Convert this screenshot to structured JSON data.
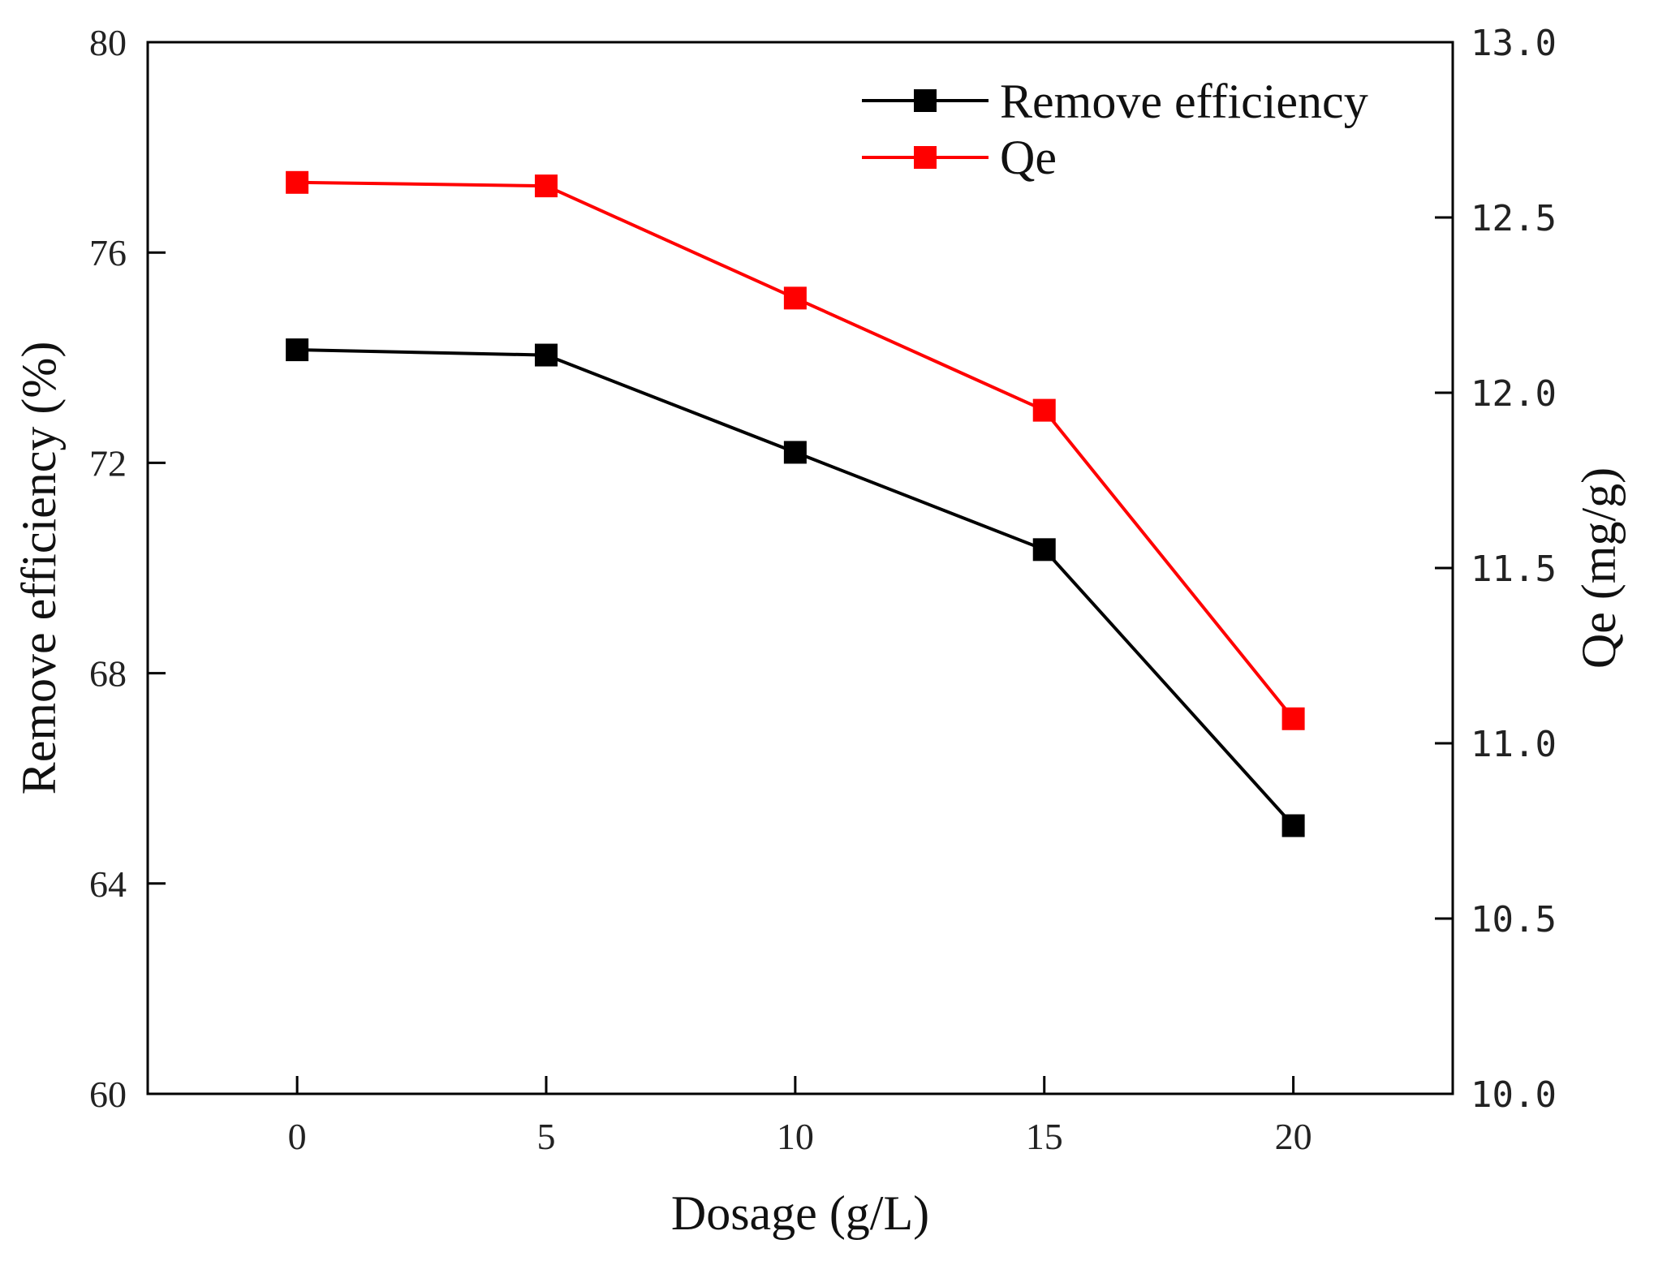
{
  "chart_data": {
    "type": "line",
    "xlabel": "Dosage (g/L)",
    "ylabel": "Remove efficiency (%)",
    "y2label": "Qe (mg/g)",
    "x": [
      0,
      5,
      10,
      15,
      20
    ],
    "xticks": [
      "0",
      "5",
      "10",
      "15",
      "20"
    ],
    "xlim": [
      -3,
      23.2
    ],
    "ylim": [
      60,
      80
    ],
    "yticks": [
      "60",
      "64",
      "68",
      "72",
      "76",
      "80"
    ],
    "y2lim": [
      10.0,
      13.0
    ],
    "y2ticks": [
      "10.0",
      "10.5",
      "11.0",
      "11.5",
      "12.0",
      "12.5",
      "13.0"
    ],
    "legend_position": "top-right",
    "grid": false,
    "series": [
      {
        "name": "Remove efficiency",
        "axis": "left",
        "color": "#000000",
        "marker": "square",
        "values": [
          74.15,
          74.05,
          72.2,
          70.35,
          65.1
        ]
      },
      {
        "name": "Qe",
        "axis": "right",
        "color": "#ff0000",
        "marker": "square",
        "values": [
          12.6,
          12.59,
          12.27,
          11.95,
          11.07
        ]
      }
    ]
  }
}
